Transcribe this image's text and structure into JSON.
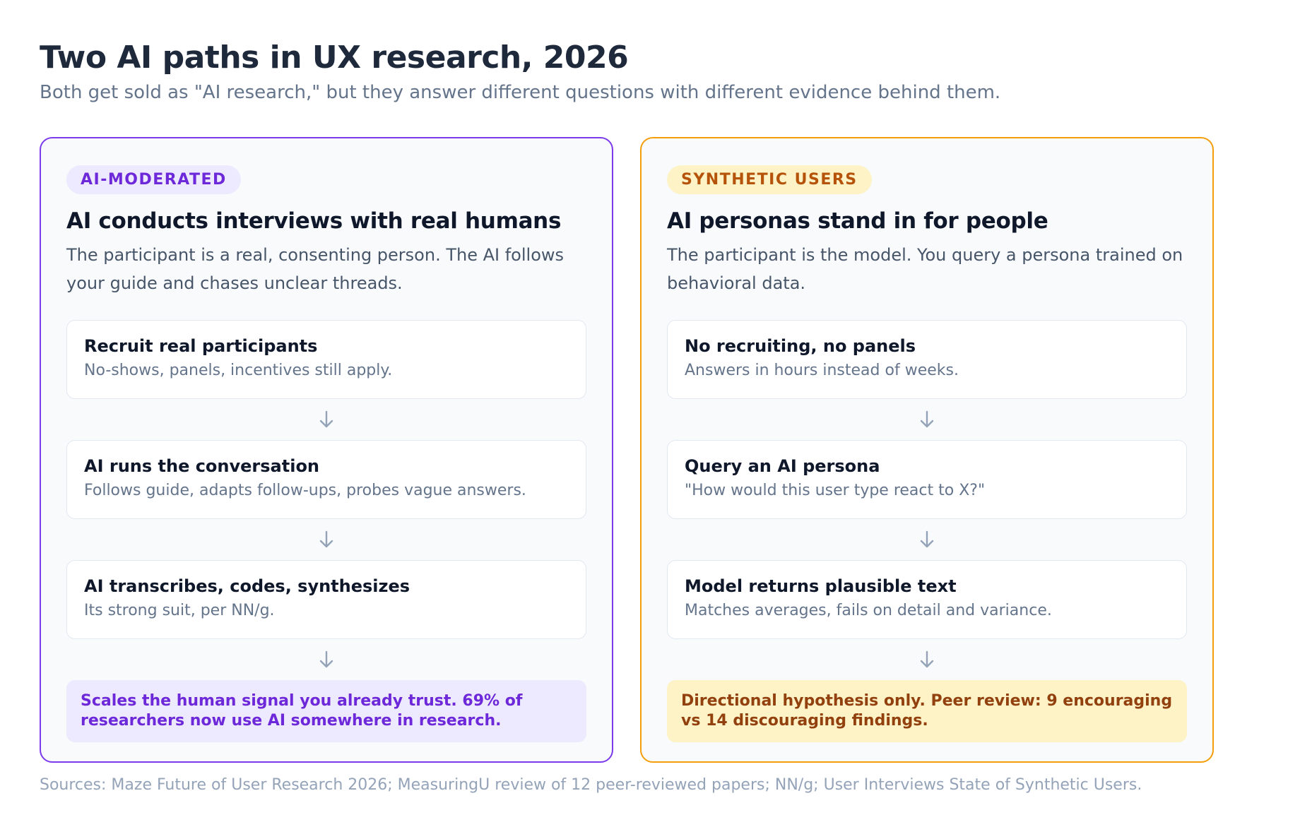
{
  "title": "Two AI paths in UX research, 2026",
  "subtitle": "Both get sold as \"AI research,\" but they answer different questions with different evidence behind them.",
  "colors": {
    "ai_moderated_border": "#7c3aed",
    "ai_moderated_tint": "#ede9fe",
    "synthetic_border": "#f59e0b",
    "synthetic_tint": "#fef3c7"
  },
  "columns": [
    {
      "badge": "AI-MODERATED",
      "title": "AI conducts interviews with real humans",
      "description": "The participant is a real, consenting person. The AI follows your guide and chases unclear threads.",
      "steps": [
        {
          "title": "Recruit real participants",
          "description": "No-shows, panels, incentives still apply."
        },
        {
          "title": "AI runs the conversation",
          "description": "Follows guide, adapts follow-ups, probes vague answers."
        },
        {
          "title": "AI transcribes, codes, synthesizes",
          "description": "Its strong suit, per NN/g."
        }
      ],
      "outcome": "Scales the human signal you already trust. 69% of researchers now use AI somewhere in research."
    },
    {
      "badge": "SYNTHETIC USERS",
      "title": "AI personas stand in for people",
      "description": "The participant is the model. You query a persona trained on behavioral data.",
      "steps": [
        {
          "title": "No recruiting, no panels",
          "description": "Answers in hours instead of weeks."
        },
        {
          "title": "Query an AI persona",
          "description": "\"How would this user type react to X?\""
        },
        {
          "title": "Model returns plausible text",
          "description": "Matches averages, fails on detail and variance."
        }
      ],
      "outcome": "Directional hypothesis only. Peer review: 9 encouraging vs 14 discouraging findings."
    }
  ],
  "sources": "Sources: Maze Future of User Research 2026; MeasuringU review of 12 peer-reviewed papers; NN/g; User Interviews State of Synthetic Users."
}
